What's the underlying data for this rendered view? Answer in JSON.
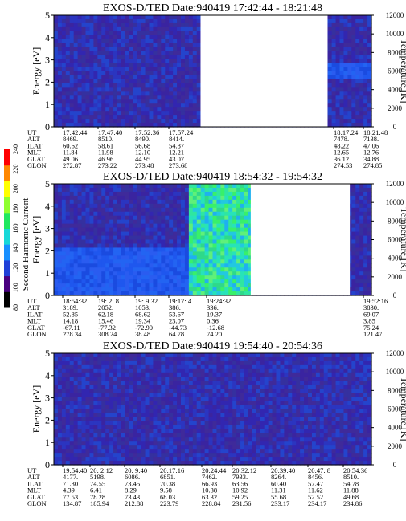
{
  "chart_data": [
    {
      "type": "heatmap",
      "title": "EXOS-D/TED   Date:940419  17:42:44 - 18:21:48",
      "ylabel": "Energy [eV]",
      "ylim": [
        0,
        5
      ],
      "yticks": [
        "0",
        "1",
        "2",
        "3",
        "4",
        "5"
      ],
      "y2label": "Temperature [K]",
      "y2lim": [
        0,
        12000
      ],
      "y2ticks": [
        "0",
        "2000",
        "4000",
        "6000",
        "8000",
        "10000",
        "12000"
      ],
      "data_gaps": [
        {
          "from_frac": 0.462,
          "to_frac": 0.862
        }
      ],
      "background": "low-intensity blue/purple noise across full energy range",
      "features": [
        {
          "time_frac": [
            0.862,
            1.0
          ],
          "energy_range": [
            2.2,
            2.9
          ],
          "color": "#1f57ee",
          "note": "brighter blue band"
        }
      ],
      "info": {
        "row_labels": [
          "UT",
          "ALT",
          "ILAT",
          "MLT",
          "GLAT",
          "GLON"
        ],
        "columns": [
          {
            "UT": "17:42:44",
            "ALT": "8469.",
            "ILAT": "60.62",
            "MLT": "11.84",
            "GLAT": "49.06",
            "GLON": "272.87"
          },
          {
            "UT": "17:47:40",
            "ALT": "8510.",
            "ILAT": "58.61",
            "MLT": "11.98",
            "GLAT": "46.96",
            "GLON": "273.22"
          },
          {
            "UT": "17:52:36",
            "ALT": "8490.",
            "ILAT": "56.68",
            "MLT": "12.10",
            "GLAT": "44.95",
            "GLON": "273.48"
          },
          {
            "UT": "17:57:24",
            "ALT": "8414.",
            "ILAT": "54.87",
            "MLT": "12.21",
            "GLAT": "43.07",
            "GLON": "273.68"
          },
          {
            "UT": "18:17:24",
            "ALT": "7478.",
            "ILAT": "48.22",
            "MLT": "12.65",
            "GLAT": "36.12",
            "GLON": "274.53"
          },
          {
            "UT": "18:21:48",
            "ALT": "7138.",
            "ILAT": "47.06",
            "MLT": "12.76",
            "GLAT": "34.88",
            "GLON": "274.85"
          }
        ]
      }
    },
    {
      "type": "heatmap",
      "title": "EXOS-D/TED   Date:940419  18:54:32 - 19:54:32",
      "ylabel": "Energy [eV]",
      "ylim": [
        0,
        5
      ],
      "yticks": [
        "0",
        "1",
        "2",
        "3",
        "4",
        "5"
      ],
      "y2label": "Temperature [K]",
      "y2lim": [
        0,
        12000
      ],
      "y2ticks": [
        "0",
        "2000",
        "4000",
        "6000",
        "8000",
        "10000",
        "12000"
      ],
      "data_gaps": [
        {
          "from_frac": 0.62,
          "to_frac": 0.932
        }
      ],
      "background": "blue noise over most of the energy range",
      "features": [
        {
          "time_frac": [
            0.0,
            0.45
          ],
          "energy_range": [
            0,
            2.2
          ],
          "color": "#1d4fe0",
          "note": "brighter blue at low energy"
        },
        {
          "time_frac": [
            0.42,
            0.62
          ],
          "energy_range": [
            0,
            5
          ],
          "color": "#27e3b9",
          "note": "intense cyan/green emission"
        },
        {
          "time_frac": [
            0.26,
            0.268
          ],
          "energy_range": [
            1.8,
            3.0
          ],
          "color": "#e7e7e7",
          "note": "white streak"
        }
      ],
      "colorbar": {
        "label": "Second Harmonic Current",
        "ticks": [
          "80",
          "100",
          "120",
          "140",
          "160",
          "180",
          "200",
          "220",
          "240"
        ],
        "colors": [
          "#000000",
          "#4a0080",
          "#2040d8",
          "#1890ff",
          "#18d8d8",
          "#20e860",
          "#90ff30",
          "#ffff00",
          "#ff8800",
          "#ff0000"
        ]
      },
      "info": {
        "row_labels": [
          "UT",
          "ALT",
          "ILAT",
          "MLT",
          "GLAT",
          "GLON"
        ],
        "columns": [
          {
            "UT": "18:54:32",
            "ALT": "3189.",
            "ILAT": "52.85",
            "MLT": "14.18",
            "GLAT": "-67.11",
            "GLON": "278.34"
          },
          {
            "UT": "19: 2: 8",
            "ALT": "2052.",
            "ILAT": "62.18",
            "MLT": "15.46",
            "GLAT": "-77.32",
            "GLON": "308.24"
          },
          {
            "UT": "19: 9:32",
            "ALT": "1053.",
            "ILAT": "68.62",
            "MLT": "19.34",
            "GLAT": "-72.90",
            "GLON": "38.48"
          },
          {
            "UT": "19:17: 4",
            "ALT": "386.",
            "ILAT": "53.67",
            "MLT": "23.07",
            "GLAT": "-44.73",
            "GLON": "64.78"
          },
          {
            "UT": "19:24:32",
            "ALT": "336.",
            "ILAT": "19.37",
            "MLT": "0.36",
            "GLAT": "-12.68",
            "GLON": "74.20"
          },
          {
            "UT": "19:52:16",
            "ALT": "3830.",
            "ILAT": "69.07",
            "MLT": "3.85",
            "GLAT": "75.24",
            "GLON": "121.47"
          }
        ]
      }
    },
    {
      "type": "heatmap",
      "title": "EXOS-D/TED   Date:940419  19:54:40 - 20:54:36",
      "ylabel": "Energy [eV]",
      "ylim": [
        0,
        5
      ],
      "yticks": [
        "0",
        "1",
        "2",
        "3",
        "4",
        "5"
      ],
      "y2label": "Temperature [K]",
      "y2lim": [
        0,
        12000
      ],
      "y2ticks": [
        "0",
        "2000",
        "4000",
        "6000",
        "8000",
        "10000",
        "12000"
      ],
      "data_gaps": [],
      "background": "low-intensity blue/purple noise, slightly brighter near top right",
      "features": [],
      "info": {
        "row_labels": [
          "UT",
          "ALT",
          "ILAT",
          "MLT",
          "GLAT",
          "GLON"
        ],
        "columns": [
          {
            "UT": "19:54:40",
            "ALT": "4177.",
            "ILAT": "71.30",
            "MLT": "4.39",
            "GLAT": "77.53",
            "GLON": "134.87"
          },
          {
            "UT": "20: 2:12",
            "ALT": "5198.",
            "ILAT": "74.55",
            "MLT": "6.41",
            "GLAT": "78.28",
            "GLON": "185.94"
          },
          {
            "UT": "20: 9:40",
            "ALT": "6086.",
            "ILAT": "73.45",
            "MLT": "8.29",
            "GLAT": "73.43",
            "GLON": "212.88"
          },
          {
            "UT": "20:17:16",
            "ALT": "6851.",
            "ILAT": "70.38",
            "MLT": "9.58",
            "GLAT": "68.03",
            "GLON": "223.79"
          },
          {
            "UT": "20:24:44",
            "ALT": "7462.",
            "ILAT": "66.93",
            "MLT": "10.38",
            "GLAT": "63.32",
            "GLON": "228.84"
          },
          {
            "UT": "20:32:12",
            "ALT": "7933.",
            "ILAT": "63.56",
            "MLT": "10.92",
            "GLAT": "59.25",
            "GLON": "231.56"
          },
          {
            "UT": "20:39:40",
            "ALT": "8264.",
            "ILAT": "60.40",
            "MLT": "11.31",
            "GLAT": "55.68",
            "GLON": "233.17"
          },
          {
            "UT": "20:47: 8",
            "ALT": "8456.",
            "ILAT": "57.47",
            "MLT": "11.62",
            "GLAT": "52.52",
            "GLON": "234.17"
          },
          {
            "UT": "20:54:36",
            "ALT": "8510.",
            "ILAT": "54.78",
            "MLT": "11.88",
            "GLAT": "49.68",
            "GLON": "234.86"
          }
        ]
      }
    }
  ],
  "colors": {
    "noise_base": "#3a2aa8",
    "noise_alt": "#2f47c8",
    "axis": "#000000",
    "gap": "#ffffff"
  }
}
